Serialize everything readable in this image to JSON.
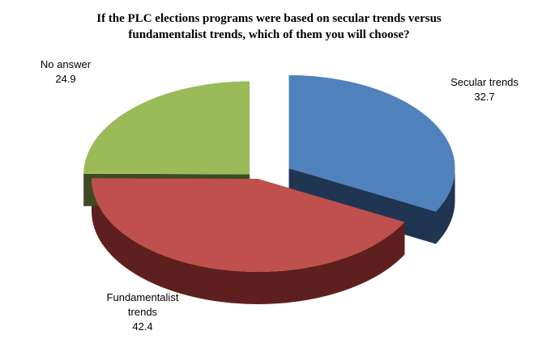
{
  "chart_data": {
    "type": "pie",
    "title_lines": [
      "If the PLC elections programs were based on secular trends versus",
      "fundamentalist  trends, which of them you will choose?"
    ],
    "slices": [
      {
        "label_lines": [
          "Secular trends"
        ],
        "value": 32.7,
        "value_text": "32.7",
        "color": "#4f81bd",
        "side_color": "#1f3552"
      },
      {
        "label_lines": [
          "Fundamentalist",
          "trends"
        ],
        "value": 42.4,
        "value_text": "42.4",
        "color": "#c0504d",
        "side_color": "#5e201e"
      },
      {
        "label_lines": [
          "No answer"
        ],
        "value": 24.9,
        "value_text": "24.9",
        "color": "#9bbb59",
        "side_color": "#3e4a22"
      }
    ],
    "style": "3d-exploded"
  }
}
